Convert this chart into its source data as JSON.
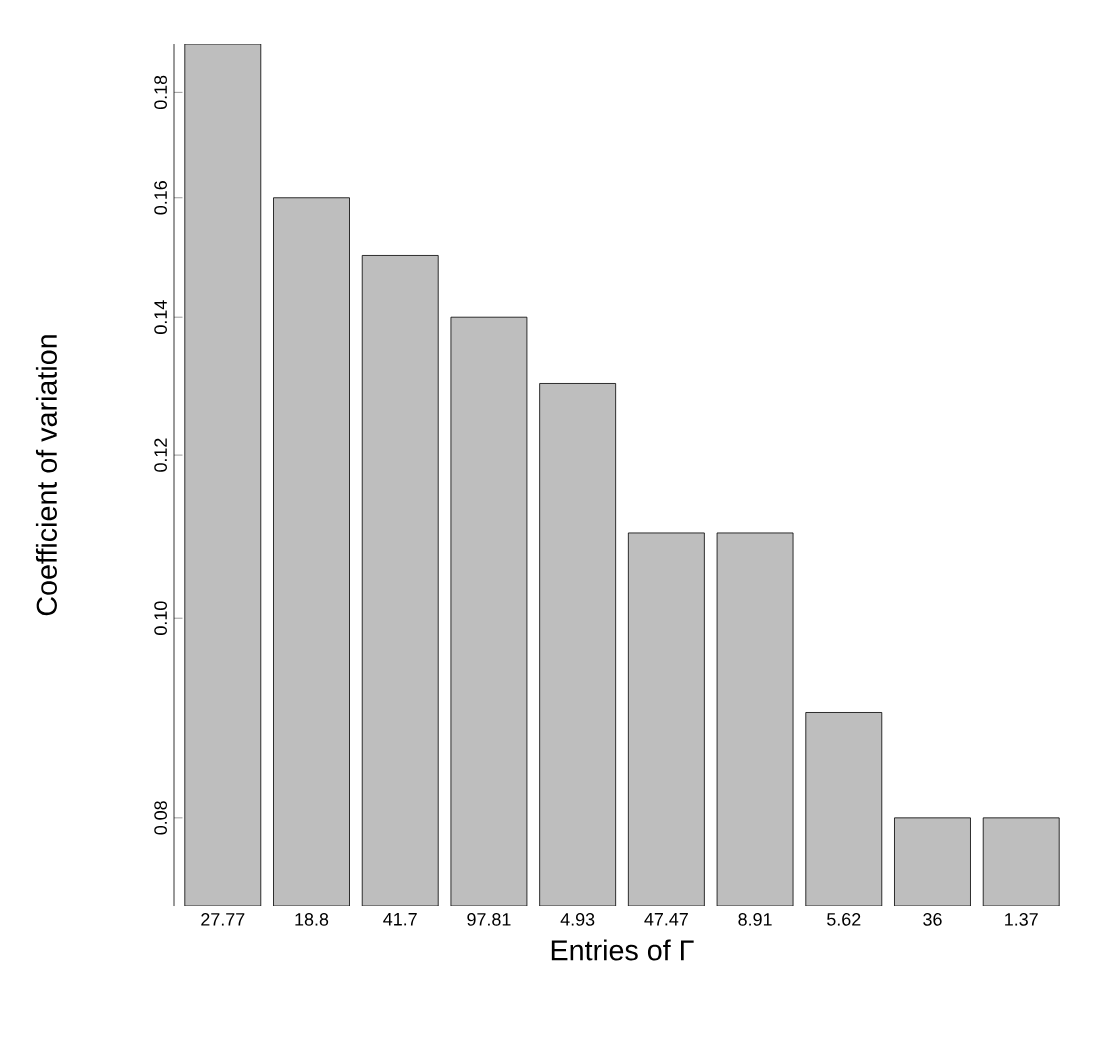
{
  "chart_data": {
    "type": "bar",
    "xlabel": "Entries of Γ",
    "ylabel": "Coefficient of variation",
    "categories": [
      "27.77",
      "18.8",
      "41.7",
      "97.81",
      "4.93",
      "47.47",
      "8.91",
      "5.62",
      "36",
      "1.37"
    ],
    "values": [
      0.19,
      0.16,
      0.15,
      0.14,
      0.13,
      0.11,
      0.11,
      0.09,
      0.08,
      0.08
    ],
    "color": "#bebebe",
    "log": true,
    "ylim": [
      0.0725,
      0.19
    ],
    "yticks": [
      0.08,
      {
        "value": 0.1,
        "label": "0.10"
      },
      0.12,
      0.14,
      0.16,
      0.18
    ]
  }
}
